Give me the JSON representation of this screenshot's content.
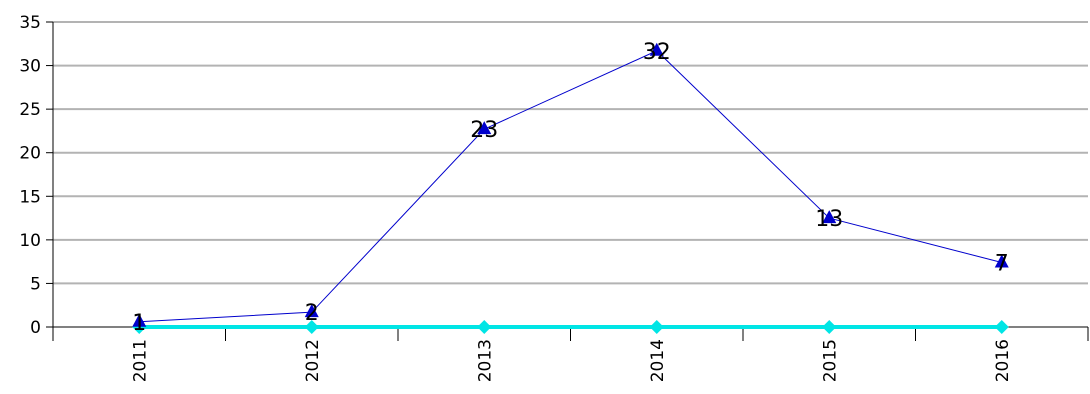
{
  "chart_data": {
    "type": "line",
    "categories": [
      "2011",
      "2012",
      "2013",
      "2014",
      "2015",
      "2016"
    ],
    "ylim": [
      0,
      35
    ],
    "yticks": [
      0,
      5,
      10,
      15,
      20,
      25,
      30,
      35
    ],
    "grid": true,
    "legend": "none",
    "series": [
      {
        "values": [
          0.6,
          1.7,
          22.7,
          31.7,
          12.5,
          7.4
        ],
        "data_labels": [
          "1",
          "2",
          "23",
          "32",
          "13",
          "7"
        ],
        "color": "#0000cc",
        "marker": "triangle"
      },
      {
        "values": [
          0,
          0,
          0,
          0,
          0,
          0
        ],
        "color": "#00e5e5",
        "marker": "diamond"
      }
    ]
  }
}
